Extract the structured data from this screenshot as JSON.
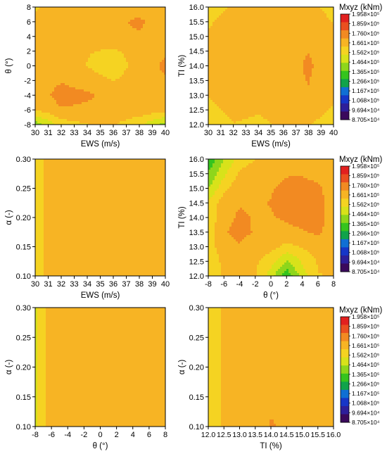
{
  "colors": {
    "scale": [
      "#3a0a5c",
      "#2d1f9a",
      "#1636c8",
      "#0f6fd4",
      "#10a34a",
      "#35c41e",
      "#8ed61b",
      "#d8e21a",
      "#f5d322",
      "#f7b424",
      "#f28a22",
      "#ea4f20",
      "#e2201f"
    ],
    "frame": "#000000"
  },
  "legend": {
    "title": "Mxyz (kNm)",
    "labels": [
      "1.958×10⁵",
      "1.859×10⁵",
      "1.760×10⁵",
      "1.661×10⁵",
      "1.562×10⁵",
      "1.464×10⁵",
      "1.365×10⁵",
      "1.266×10⁵",
      "1.167×10⁵",
      "1.068×10⁵",
      "9.694×10⁴",
      "8.705×10⁴"
    ]
  },
  "chart_data": [
    {
      "type": "heatmap",
      "xlabel": "EWS (m/s)",
      "ylabel": "θ (°)",
      "xlim": [
        30,
        40
      ],
      "ylim": [
        -8,
        8
      ],
      "xticks": [
        "30",
        "31",
        "32",
        "33",
        "34",
        "35",
        "36",
        "37",
        "38",
        "39",
        "40"
      ],
      "yticks": [
        "-8",
        "-6",
        "-4",
        "-2",
        "0",
        "2",
        "4",
        "6",
        "8"
      ],
      "x": [
        30,
        32,
        34,
        36,
        38,
        40
      ],
      "y": [
        -8,
        -6,
        -4,
        -2,
        0,
        2,
        4,
        6,
        8
      ],
      "z": [
        [
          140000.0,
          158000.0,
          162000.0,
          163000.0,
          156000.0,
          142000.0
        ],
        [
          163000.0,
          170000.0,
          169000.0,
          168000.0,
          168000.0,
          165000.0
        ],
        [
          166000.0,
          174000.0,
          172000.0,
          168000.0,
          170000.0,
          168000.0
        ],
        [
          166000.0,
          170000.0,
          167000.0,
          162000.0,
          168000.0,
          170000.0
        ],
        [
          165000.0,
          166000.0,
          162000.0,
          156000.0,
          167000.0,
          172000.0
        ],
        [
          163000.0,
          165000.0,
          163000.0,
          161000.0,
          166000.0,
          170000.0
        ],
        [
          164000.0,
          167000.0,
          168000.0,
          169000.0,
          170000.0,
          168000.0
        ],
        [
          163000.0,
          166000.0,
          168000.0,
          169000.0,
          172000.0,
          166000.0
        ],
        [
          162000.0,
          164000.0,
          166000.0,
          167000.0,
          168000.0,
          164000.0
        ]
      ]
    },
    {
      "type": "heatmap",
      "xlabel": "EWS (m/s)",
      "ylabel": "TI (%)",
      "xlim": [
        30,
        40
      ],
      "ylim": [
        12,
        16
      ],
      "xticks": [
        "30",
        "31",
        "32",
        "33",
        "34",
        "35",
        "36",
        "37",
        "38",
        "39",
        "40"
      ],
      "yticks": [
        "12.0",
        "12.5",
        "13.0",
        "13.5",
        "14.0",
        "14.5",
        "15.0",
        "15.5",
        "16.0"
      ],
      "x": [
        30,
        32,
        34,
        36,
        38,
        40
      ],
      "y": [
        12,
        13,
        14,
        15,
        16
      ],
      "z": [
        [
          156000.0,
          162000.0,
          160000.0,
          164000.0,
          163000.0,
          158000.0
        ],
        [
          163000.0,
          168000.0,
          167000.0,
          168000.0,
          170000.0,
          164000.0
        ],
        [
          164000.0,
          170000.0,
          166000.0,
          167000.0,
          172000.0,
          165000.0
        ],
        [
          163000.0,
          167000.0,
          166000.0,
          167000.0,
          169000.0,
          164000.0
        ],
        [
          160000.0,
          163000.0,
          164000.0,
          164000.0,
          164000.0,
          160000.0
        ]
      ]
    },
    {
      "type": "heatmap",
      "xlabel": "EWS (m/s)",
      "ylabel": "α (-)",
      "xlim": [
        30,
        40
      ],
      "ylim": [
        0.1,
        0.3
      ],
      "xticks": [
        "30",
        "31",
        "32",
        "33",
        "34",
        "35",
        "36",
        "37",
        "38",
        "39",
        "40"
      ],
      "yticks": [
        "0.10",
        "0.15",
        "0.20",
        "0.25",
        "0.30"
      ],
      "x": [
        30,
        31,
        32,
        34,
        36,
        38,
        40
      ],
      "y": [
        0.1,
        0.2,
        0.3
      ],
      "z": [
        [
          159000.0,
          164000.0,
          166000.0,
          165000.0,
          166000.0,
          169000.0,
          166000.0
        ],
        [
          159000.0,
          164000.0,
          166000.0,
          164000.0,
          166000.0,
          169000.0,
          166000.0
        ],
        [
          159000.0,
          164000.0,
          166000.0,
          165000.0,
          167000.0,
          169000.0,
          166000.0
        ]
      ]
    },
    {
      "type": "heatmap",
      "xlabel": "θ (°)",
      "ylabel": "TI (%)",
      "xlim": [
        -8,
        8
      ],
      "ylim": [
        12,
        16
      ],
      "xticks": [
        "-8",
        "-6",
        "-4",
        "-2",
        "0",
        "2",
        "4",
        "6",
        "8"
      ],
      "yticks": [
        "12.0",
        "12.5",
        "13.0",
        "13.5",
        "14.0",
        "14.5",
        "15.0",
        "15.5",
        "16.0"
      ],
      "x": [
        -8,
        -6,
        -4,
        -2,
        0,
        2,
        4,
        6,
        8
      ],
      "y": [
        12,
        12.5,
        13,
        13.5,
        14,
        14.5,
        15,
        15.5,
        16
      ],
      "z": [
        [
          155000.0,
          164000.0,
          168000.0,
          163000.0,
          150000.0,
          130000.0,
          150000.0,
          162000.0,
          163000.0
        ],
        [
          155000.0,
          165000.0,
          168000.0,
          164000.0,
          158000.0,
          145000.0,
          155000.0,
          163000.0,
          164000.0
        ],
        [
          158000.0,
          168000.0,
          170000.0,
          167000.0,
          165000.0,
          160000.0,
          163000.0,
          167000.0,
          165000.0
        ],
        [
          158000.0,
          170000.0,
          173000.0,
          170000.0,
          168000.0,
          168000.0,
          170000.0,
          172000.0,
          167000.0
        ],
        [
          156000.0,
          168000.0,
          172000.0,
          170000.0,
          170000.0,
          172000.0,
          174000.0,
          173000.0,
          168000.0
        ],
        [
          155000.0,
          167000.0,
          170000.0,
          170000.0,
          171000.0,
          174000.0,
          176000.0,
          173000.0,
          168000.0
        ],
        [
          145000.0,
          160000.0,
          168000.0,
          169000.0,
          170000.0,
          173000.0,
          174000.0,
          172000.0,
          167000.0
        ],
        [
          138000.0,
          152000.0,
          164000.0,
          167000.0,
          168000.0,
          170000.0,
          170000.0,
          168000.0,
          165000.0
        ],
        [
          130000.0,
          145000.0,
          158000.0,
          162000.0,
          163000.0,
          164000.0,
          164000.0,
          163000.0,
          162000.0
        ]
      ]
    },
    {
      "type": "heatmap",
      "xlabel": "θ (°)",
      "ylabel": "α (-)",
      "xlim": [
        -8,
        8
      ],
      "ylim": [
        0.1,
        0.3
      ],
      "xticks": [
        "-8",
        "-6",
        "-4",
        "-2",
        "0",
        "2",
        "4",
        "6",
        "8"
      ],
      "yticks": [
        "0.10",
        "0.15",
        "0.20",
        "0.25",
        "0.30"
      ],
      "x": [
        -8,
        -7.5,
        -6.5,
        -5,
        -2,
        0,
        2,
        5,
        7,
        8
      ],
      "y": [
        0.1,
        0.2,
        0.3
      ],
      "z": [
        [
          148000.0,
          156000.0,
          163000.0,
          167000.0,
          168000.0,
          167000.0,
          168000.0,
          170000.0,
          168000.0,
          166000.0
        ],
        [
          148000.0,
          156000.0,
          163000.0,
          167000.0,
          167000.0,
          166000.0,
          167000.0,
          170000.0,
          168000.0,
          166000.0
        ],
        [
          148000.0,
          156000.0,
          163000.0,
          167000.0,
          168000.0,
          167000.0,
          168000.0,
          170000.0,
          168000.0,
          166000.0
        ]
      ]
    },
    {
      "type": "heatmap",
      "xlabel": "TI (%)",
      "ylabel": "α (-)",
      "xlim": [
        12,
        16
      ],
      "ylim": [
        0.1,
        0.3
      ],
      "xticks": [
        "12.0",
        "12.5",
        "13.0",
        "13.5",
        "14.0",
        "14.5",
        "15.0",
        "15.5",
        "16.0"
      ],
      "yticks": [
        "0.10",
        "0.15",
        "0.20",
        "0.25",
        "0.30"
      ],
      "x": [
        12,
        12.25,
        12.6,
        13,
        13.5,
        14,
        14.5,
        15,
        15.5,
        16
      ],
      "y": [
        0.1,
        0.2,
        0.3
      ],
      "z": [
        [
          154000.0,
          160000.0,
          165000.0,
          167000.0,
          169000.0,
          171000.0,
          170000.0,
          169000.0,
          167000.0,
          164000.0
        ],
        [
          154000.0,
          160000.0,
          165000.0,
          167000.0,
          168000.0,
          169000.0,
          170000.0,
          169000.0,
          167000.0,
          164000.0
        ],
        [
          154000.0,
          160000.0,
          165000.0,
          167000.0,
          168000.0,
          168000.0,
          169000.0,
          169000.0,
          167000.0,
          164000.0
        ]
      ]
    }
  ]
}
